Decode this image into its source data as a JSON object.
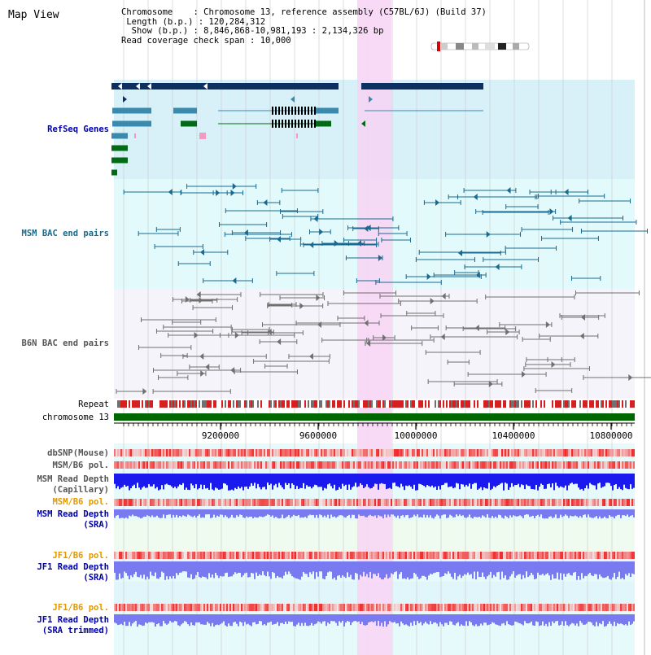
{
  "title": "Map View",
  "info": {
    "chromosome_label": "Chromosome",
    "chromosome_value": "Chromosome 13, reference assembly (C57BL/6J) (Build 37)",
    "length_label": "Length (b.p.)",
    "length_value": "120,284,312",
    "show_label": "Show (b.p.)",
    "show_value": "8,846,868-10,981,193 : 2,134,326 bp",
    "coverage_label": "Read coverage check span",
    "coverage_value": "10,000"
  },
  "tracks": {
    "refseq": "RefSeq Genes",
    "msm_bac": "MSM BAC end pairs",
    "b6n_bac": "B6N BAC end pairs",
    "repeat": "Repeat",
    "chromosome": "chromosome 13",
    "dbsnp": "dbSNP(Mouse)",
    "msm_b6_pol_1": "MSM/B6 pol.",
    "msm_depth_cap_1": "MSM Read Depth",
    "msm_depth_cap_2": "(Capillary)",
    "msm_b6_pol_2": "MSM/B6 pol.",
    "msm_depth_sra_1": "MSM Read Depth",
    "msm_depth_sra_2": "(SRA)",
    "jf1_b6_pol_1": "JF1/B6 pol.",
    "jf1_depth_sra_1": "JF1 Read Depth",
    "jf1_depth_sra_2": "(SRA)",
    "jf1_b6_pol_2": "JF1/B6 pol.",
    "jf1_depth_trim_1": "JF1 Read Depth",
    "jf1_depth_trim_2": "(SRA trimmed)"
  },
  "axis": {
    "ticks": [
      "9200000",
      "9600000",
      "10000000",
      "10400000",
      "10800000"
    ]
  },
  "colors": {
    "refseq_bg": "#d8f0f8",
    "msm_bg": "#e2fafc",
    "highlight": "#f8d4f4",
    "navy": "#0c3060",
    "teal": "#3a8ab0",
    "green": "#006a14",
    "msm_line": "#1a6a90",
    "b6n_line": "#707070",
    "chrom_bar": "#006600",
    "depth_blue": "#1a1aee",
    "depth_light": "#7a7af0",
    "label_blue": "#0000aa",
    "label_teal": "#1a6a8a",
    "label_gray": "#555555",
    "label_orange": "#e09a00"
  }
}
